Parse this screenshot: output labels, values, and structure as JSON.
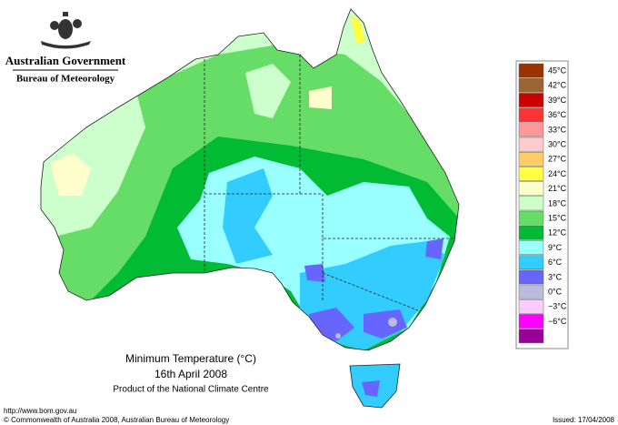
{
  "header": {
    "government": "Australian Government",
    "agency": "Bureau of Meteorology"
  },
  "map": {
    "title": "Minimum Temperature (°C)",
    "date": "16th April 2008",
    "product": "Product of the National Climate Centre"
  },
  "legend": {
    "items": [
      {
        "label": "45°C",
        "color": "#993300"
      },
      {
        "label": "42°C",
        "color": "#996633"
      },
      {
        "label": "39°C",
        "color": "#cc0000"
      },
      {
        "label": "36°C",
        "color": "#ff3333"
      },
      {
        "label": "33°C",
        "color": "#ff9999"
      },
      {
        "label": "30°C",
        "color": "#ffcccc"
      },
      {
        "label": "27°C",
        "color": "#ffcc66"
      },
      {
        "label": "24°C",
        "color": "#ffff44"
      },
      {
        "label": "21°C",
        "color": "#ffffcc"
      },
      {
        "label": "18°C",
        "color": "#ccffcc"
      },
      {
        "label": "15°C",
        "color": "#66dd66"
      },
      {
        "label": "12°C",
        "color": "#00bb33"
      },
      {
        "label": "9°C",
        "color": "#99ffff"
      },
      {
        "label": "6°C",
        "color": "#33ccff"
      },
      {
        "label": "3°C",
        "color": "#6666ff"
      },
      {
        "label": "0°C",
        "color": "#bbbbdd"
      },
      {
        "label": "−3°C",
        "color": "#ffccff"
      },
      {
        "label": "−6°C",
        "color": "#ff00ff"
      },
      {
        "label": "",
        "color": "#990099"
      }
    ]
  },
  "footer": {
    "url": "http://www.bom.gov.au",
    "copyright": "© Commonwealth of Australia 2008, Australian Bureau of Meteorology",
    "issued": "Issued: 17/04/2008"
  }
}
